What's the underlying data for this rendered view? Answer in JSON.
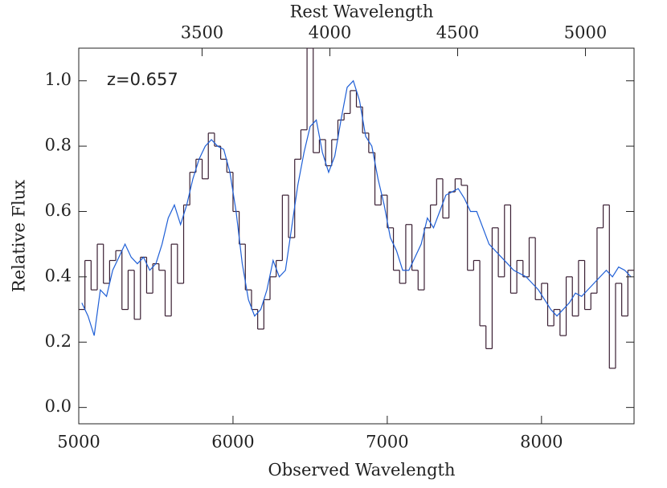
{
  "chart_data": {
    "type": "line",
    "annotation": "z=0.657",
    "x_label": "Observed Wavelength",
    "x2_label": "Rest Wavelength",
    "y_label": "Relative Flux",
    "xlim": [
      5000,
      8600
    ],
    "xticks": [
      5000,
      6000,
      7000,
      8000
    ],
    "x2lim": [
      3017.5,
      5190.1
    ],
    "x2ticks": [
      3500,
      4000,
      4500,
      5000
    ],
    "ylim": [
      -0.05,
      1.1
    ],
    "yticks": [
      {
        "value": 0,
        "label": "0.0"
      },
      0.2,
      0.4,
      0.6,
      0.8,
      {
        "value": 1,
        "label": "1.0"
      }
    ],
    "x": [
      5020,
      5060,
      5100,
      5140,
      5180,
      5220,
      5260,
      5300,
      5340,
      5380,
      5420,
      5460,
      5500,
      5540,
      5580,
      5620,
      5660,
      5700,
      5740,
      5780,
      5820,
      5860,
      5900,
      5940,
      5980,
      6020,
      6060,
      6100,
      6140,
      6180,
      6220,
      6260,
      6300,
      6340,
      6380,
      6420,
      6460,
      6500,
      6540,
      6580,
      6620,
      6660,
      6700,
      6740,
      6780,
      6820,
      6860,
      6900,
      6940,
      6980,
      7020,
      7060,
      7100,
      7140,
      7180,
      7220,
      7260,
      7300,
      7340,
      7380,
      7420,
      7460,
      7500,
      7540,
      7580,
      7620,
      7660,
      7700,
      7740,
      7780,
      7820,
      7860,
      7900,
      7940,
      7980,
      8020,
      8060,
      8100,
      8140,
      8180,
      8220,
      8260,
      8300,
      8340,
      8380,
      8420,
      8460,
      8500,
      8540,
      8580
    ],
    "series": [
      {
        "color": "#3a1f33",
        "steps": true,
        "values": [
          0.3,
          0.45,
          0.36,
          0.5,
          0.38,
          0.45,
          0.48,
          0.3,
          0.42,
          0.27,
          0.46,
          0.35,
          0.44,
          0.42,
          0.28,
          0.5,
          0.38,
          0.62,
          0.72,
          0.76,
          0.7,
          0.84,
          0.8,
          0.76,
          0.72,
          0.6,
          0.5,
          0.36,
          0.3,
          0.24,
          0.33,
          0.4,
          0.45,
          0.65,
          0.52,
          0.76,
          0.85,
          1.1,
          0.78,
          0.82,
          0.74,
          0.82,
          0.88,
          0.9,
          0.97,
          0.92,
          0.84,
          0.78,
          0.62,
          0.65,
          0.55,
          0.42,
          0.38,
          0.56,
          0.42,
          0.36,
          0.55,
          0.62,
          0.7,
          0.58,
          0.66,
          0.7,
          0.68,
          0.42,
          0.45,
          0.25,
          0.18,
          0.55,
          0.4,
          0.62,
          0.35,
          0.45,
          0.4,
          0.52,
          0.33,
          0.38,
          0.25,
          0.3,
          0.22,
          0.4,
          0.28,
          0.45,
          0.3,
          0.35,
          0.55,
          0.62,
          0.12,
          0.38,
          0.28,
          0.42
        ]
      },
      {
        "color": "#1f5fd6",
        "steps": false,
        "values": [
          0.32,
          0.28,
          0.22,
          0.36,
          0.34,
          0.42,
          0.46,
          0.5,
          0.46,
          0.44,
          0.46,
          0.42,
          0.44,
          0.5,
          0.58,
          0.62,
          0.56,
          0.62,
          0.7,
          0.76,
          0.8,
          0.82,
          0.8,
          0.79,
          0.72,
          0.6,
          0.44,
          0.33,
          0.28,
          0.3,
          0.36,
          0.45,
          0.4,
          0.42,
          0.55,
          0.68,
          0.78,
          0.86,
          0.88,
          0.78,
          0.72,
          0.77,
          0.88,
          0.98,
          1.0,
          0.94,
          0.83,
          0.8,
          0.7,
          0.62,
          0.52,
          0.48,
          0.42,
          0.42,
          0.46,
          0.5,
          0.58,
          0.55,
          0.6,
          0.65,
          0.66,
          0.67,
          0.64,
          0.6,
          0.6,
          0.55,
          0.5,
          0.48,
          0.46,
          0.44,
          0.42,
          0.41,
          0.4,
          0.38,
          0.36,
          0.33,
          0.3,
          0.28,
          0.3,
          0.32,
          0.35,
          0.34,
          0.36,
          0.38,
          0.4,
          0.42,
          0.4,
          0.43,
          0.42,
          0.4
        ]
      }
    ]
  }
}
